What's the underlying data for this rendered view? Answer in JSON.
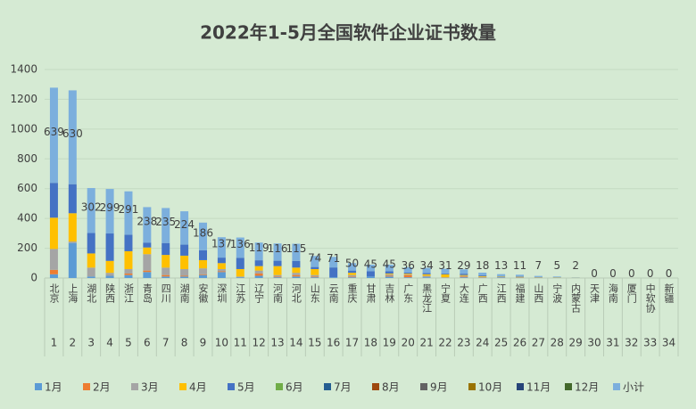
{
  "chart_data": {
    "type": "stacked_bar",
    "title": "2022年1-5月全国软件企业证书数量",
    "categories": [
      "北京",
      "上海",
      "湖北",
      "陕西",
      "浙江",
      "青岛",
      "四川",
      "湖南",
      "安徽",
      "深圳",
      "江苏",
      "辽宁",
      "河南",
      "河北",
      "山东",
      "云南",
      "重庆",
      "甘肃",
      "吉林",
      "广东",
      "黑龙江",
      "宁夏",
      "大连",
      "广西",
      "江西",
      "福建",
      "山西",
      "宁波",
      "内蒙古",
      "天津",
      "海南",
      "厦门",
      "中软协",
      "新疆"
    ],
    "category_numbers": [
      "1",
      "2",
      "3",
      "4",
      "5",
      "6",
      "7",
      "8",
      "9",
      "10",
      "11",
      "12",
      "13",
      "14",
      "15",
      "16",
      "17",
      "18",
      "19",
      "20",
      "21",
      "22",
      "23",
      "24",
      "25",
      "26",
      "27",
      "28",
      "29",
      "30",
      "31",
      "32",
      "33",
      "34"
    ],
    "series": [
      {
        "name": "1月",
        "color": "#5b9bd5",
        "values": [
          25,
          235,
          10,
          15,
          20,
          40,
          10,
          10,
          20,
          40,
          5,
          15,
          5,
          10,
          5,
          5,
          5,
          10,
          10,
          5,
          5,
          0,
          5,
          2,
          3,
          2,
          1,
          1,
          0,
          0,
          0,
          0,
          0,
          0
        ]
      },
      {
        "name": "2月",
        "color": "#ed7d31",
        "values": [
          30,
          0,
          0,
          0,
          10,
          10,
          10,
          5,
          5,
          5,
          0,
          15,
          5,
          10,
          5,
          0,
          5,
          0,
          5,
          15,
          0,
          0,
          5,
          2,
          1,
          1,
          0,
          0,
          0,
          0,
          0,
          0,
          0,
          0
        ]
      },
      {
        "name": "3月",
        "color": "#a5a5a5",
        "values": [
          140,
          10,
          60,
          20,
          30,
          110,
          50,
          45,
          40,
          15,
          5,
          20,
          10,
          15,
          10,
          0,
          10,
          0,
          10,
          5,
          10,
          5,
          5,
          4,
          3,
          2,
          2,
          1,
          1,
          0,
          0,
          0,
          0,
          0
        ]
      },
      {
        "name": "4月",
        "color": "#ffc000",
        "values": [
          210,
          190,
          95,
          80,
          120,
          45,
          85,
          90,
          55,
          40,
          50,
          30,
          60,
          35,
          40,
          0,
          15,
          0,
          5,
          5,
          10,
          20,
          5,
          5,
          3,
          3,
          2,
          2,
          1,
          0,
          0,
          0,
          0,
          0
        ]
      },
      {
        "name": "5月",
        "color": "#4472c4",
        "values": [
          234,
          195,
          137,
          184,
          111,
          33,
          80,
          74,
          66,
          37,
          76,
          39,
          36,
          45,
          14,
          66,
          15,
          35,
          15,
          6,
          9,
          6,
          9,
          5,
          3,
          3,
          2,
          1,
          0,
          0,
          0,
          0,
          0,
          0
        ]
      },
      {
        "name": "6月",
        "color": "#70ad47",
        "values": [
          0,
          0,
          0,
          0,
          0,
          0,
          0,
          0,
          0,
          0,
          0,
          0,
          0,
          0,
          0,
          0,
          0,
          0,
          0,
          0,
          0,
          0,
          0,
          0,
          0,
          0,
          0,
          0,
          0,
          0,
          0,
          0,
          0,
          0
        ]
      },
      {
        "name": "7月",
        "color": "#255e91",
        "values": [
          0,
          0,
          0,
          0,
          0,
          0,
          0,
          0,
          0,
          0,
          0,
          0,
          0,
          0,
          0,
          0,
          0,
          0,
          0,
          0,
          0,
          0,
          0,
          0,
          0,
          0,
          0,
          0,
          0,
          0,
          0,
          0,
          0,
          0
        ]
      },
      {
        "name": "8月",
        "color": "#9e480e",
        "values": [
          0,
          0,
          0,
          0,
          0,
          0,
          0,
          0,
          0,
          0,
          0,
          0,
          0,
          0,
          0,
          0,
          0,
          0,
          0,
          0,
          0,
          0,
          0,
          0,
          0,
          0,
          0,
          0,
          0,
          0,
          0,
          0,
          0,
          0
        ]
      },
      {
        "name": "9月",
        "color": "#636363",
        "values": [
          0,
          0,
          0,
          0,
          0,
          0,
          0,
          0,
          0,
          0,
          0,
          0,
          0,
          0,
          0,
          0,
          0,
          0,
          0,
          0,
          0,
          0,
          0,
          0,
          0,
          0,
          0,
          0,
          0,
          0,
          0,
          0,
          0,
          0
        ]
      },
      {
        "name": "10月",
        "color": "#997300",
        "values": [
          0,
          0,
          0,
          0,
          0,
          0,
          0,
          0,
          0,
          0,
          0,
          0,
          0,
          0,
          0,
          0,
          0,
          0,
          0,
          0,
          0,
          0,
          0,
          0,
          0,
          0,
          0,
          0,
          0,
          0,
          0,
          0,
          0,
          0
        ]
      },
      {
        "name": "11月",
        "color": "#264478",
        "values": [
          0,
          0,
          0,
          0,
          0,
          0,
          0,
          0,
          0,
          0,
          0,
          0,
          0,
          0,
          0,
          0,
          0,
          0,
          0,
          0,
          0,
          0,
          0,
          0,
          0,
          0,
          0,
          0,
          0,
          0,
          0,
          0,
          0,
          0
        ]
      },
      {
        "name": "12月",
        "color": "#43682b",
        "values": [
          0,
          0,
          0,
          0,
          0,
          0,
          0,
          0,
          0,
          0,
          0,
          0,
          0,
          0,
          0,
          0,
          0,
          0,
          0,
          0,
          0,
          0,
          0,
          0,
          0,
          0,
          0,
          0,
          0,
          0,
          0,
          0,
          0,
          0
        ]
      },
      {
        "name": "小计",
        "color": "#7cafdd",
        "values": [
          639,
          630,
          302,
          299,
          291,
          238,
          235,
          224,
          186,
          137,
          136,
          119,
          116,
          115,
          74,
          71,
          50,
          45,
          45,
          36,
          34,
          31,
          29,
          18,
          13,
          11,
          7,
          5,
          2,
          0,
          0,
          0,
          0,
          0
        ]
      }
    ],
    "ylim": [
      0,
      1400
    ],
    "yticks": [
      0,
      200,
      400,
      600,
      800,
      1000,
      1200,
      1400
    ],
    "grid": true,
    "legend": "bottom"
  }
}
